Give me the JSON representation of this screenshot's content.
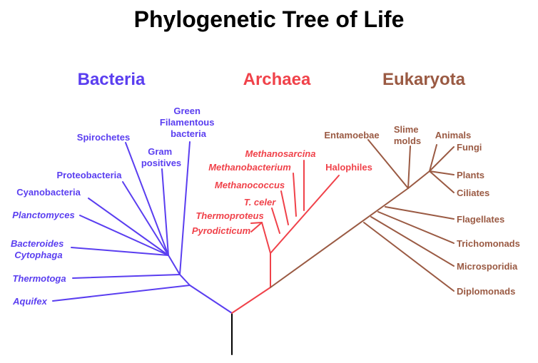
{
  "title": "Phylogenetic Tree of Life",
  "colors": {
    "bacteria": "#5a3ef0",
    "archaea": "#f0424a",
    "eukaryota": "#9a5a43",
    "root": "#000000"
  },
  "domains": {
    "bacteria": "Bacteria",
    "archaea": "Archaea",
    "eukaryota": "Eukaryota"
  },
  "bacteria": {
    "green_filamentous": [
      "Green",
      "Filamentous",
      "bacteria"
    ],
    "spirochetes": "Spirochetes",
    "gram_positives": [
      "Gram",
      "positives"
    ],
    "proteobacteria": "Proteobacteria",
    "cyanobacteria": "Cyanobacteria",
    "planctomyces": "Planctomyces",
    "bacteroides": [
      "Bacteroides",
      "Cytophaga"
    ],
    "thermotoga": "Thermotoga",
    "aquifex": "Aquifex"
  },
  "archaea": {
    "methanosarcina": "Methanosarcina",
    "methanobacterium": "Methanobacterium",
    "halophiles": "Halophiles",
    "methanococcus": "Methanococcus",
    "t_celer": "T. celer",
    "thermoproteus": "Thermoproteus",
    "pyrodicticum": "Pyrodicticum"
  },
  "eukaryota": {
    "entamoebae": "Entamoebae",
    "slime_molds": [
      "Slime",
      "molds"
    ],
    "animals": "Animals",
    "fungi": "Fungi",
    "plants": "Plants",
    "ciliates": "Ciliates",
    "flagellates": "Flagellates",
    "trichomonads": "Trichomonads",
    "microsporidia": "Microsporidia",
    "diplomonads": "Diplomonads"
  }
}
